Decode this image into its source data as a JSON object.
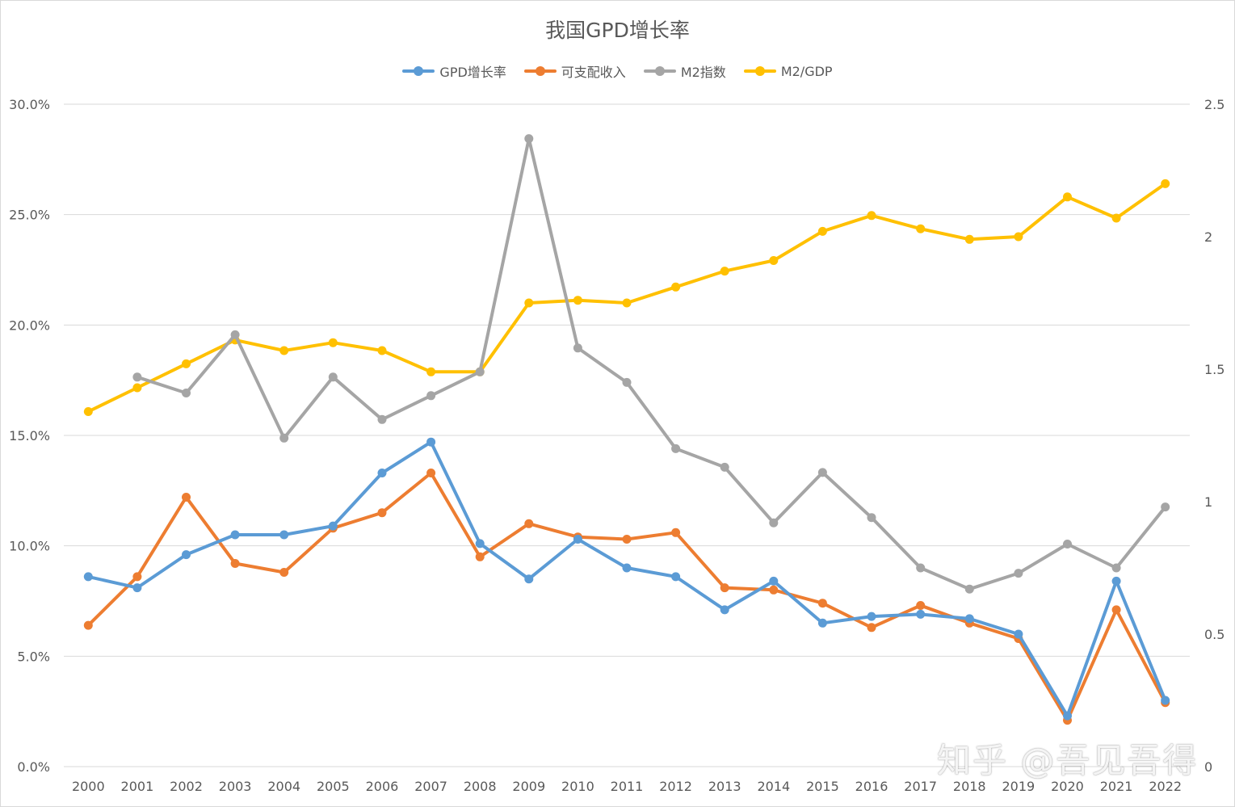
{
  "chart_data": {
    "type": "line",
    "title": "我国GPD增长率",
    "legend_position": "top",
    "grid": true,
    "categories": [
      "2000",
      "2001",
      "2002",
      "2003",
      "2004",
      "2005",
      "2006",
      "2007",
      "2008",
      "2009",
      "2010",
      "2011",
      "2012",
      "2013",
      "2014",
      "2015",
      "2016",
      "2017",
      "2018",
      "2019",
      "2020",
      "2021",
      "2022"
    ],
    "y_left": {
      "min": 0,
      "max": 0.3,
      "ticks": [
        "0.0%",
        "5.0%",
        "10.0%",
        "15.0%",
        "20.0%",
        "25.0%",
        "30.0%"
      ]
    },
    "y_right": {
      "min": 0,
      "max": 2.5,
      "ticks": [
        "0",
        "0.5",
        "1",
        "1.5",
        "2",
        "2.5"
      ]
    },
    "series": [
      {
        "name": "GPD增长率",
        "axis": "left",
        "color": "#5b9bd5",
        "values": [
          0.086,
          0.081,
          0.096,
          0.105,
          0.105,
          0.109,
          0.133,
          0.147,
          0.101,
          0.085,
          0.103,
          0.09,
          0.086,
          0.071,
          0.084,
          0.065,
          0.068,
          0.069,
          0.067,
          0.06,
          0.023,
          0.084,
          0.03
        ]
      },
      {
        "name": "可支配收入",
        "axis": "left",
        "color": "#ed7d31",
        "values": [
          0.064,
          0.086,
          0.122,
          0.092,
          0.088,
          0.108,
          0.115,
          0.133,
          0.095,
          0.11,
          0.104,
          0.103,
          0.106,
          0.081,
          0.08,
          0.074,
          0.063,
          0.073,
          0.065,
          0.058,
          0.021,
          0.071,
          0.029
        ]
      },
      {
        "name": "M2指数",
        "axis": "right",
        "color": "#a5a5a5",
        "values": [
          null,
          1.47,
          1.41,
          1.63,
          1.24,
          1.47,
          1.31,
          1.4,
          1.49,
          2.37,
          1.58,
          1.45,
          1.2,
          1.13,
          0.92,
          1.11,
          0.94,
          0.75,
          0.67,
          0.73,
          0.84,
          0.75,
          0.98
        ]
      },
      {
        "name": "M2/GDP",
        "axis": "right",
        "color": "#ffc000",
        "values": [
          1.34,
          1.43,
          1.52,
          1.61,
          1.57,
          1.6,
          1.57,
          1.49,
          1.49,
          1.75,
          1.76,
          1.75,
          1.81,
          1.87,
          1.91,
          2.02,
          2.08,
          2.03,
          1.99,
          2.0,
          2.15,
          2.07,
          2.2
        ]
      }
    ]
  },
  "watermark": "知乎 @吾见吾得"
}
